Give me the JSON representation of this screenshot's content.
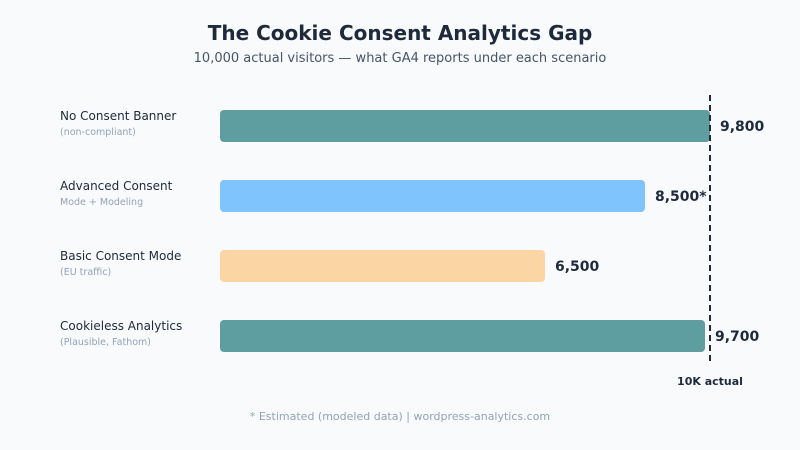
{
  "chart_data": {
    "type": "bar",
    "orientation": "horizontal",
    "title": "The Cookie Consent Analytics Gap",
    "subtitle": "10,000 actual visitors — what GA4 reports under each scenario",
    "categories": [
      "No Consent Banner",
      "Advanced Consent",
      "Basic Consent Mode",
      "Cookieless Analytics"
    ],
    "sublabels": [
      "(non-compliant)",
      "Mode + Modeling",
      "(EU traffic)",
      "(Plausible, Fathom)"
    ],
    "values": [
      9800,
      8500,
      6500,
      9700
    ],
    "value_labels": [
      "9,800",
      "8,500*",
      "6,500",
      "9,700"
    ],
    "colors": [
      "#5f9ea0",
      "#7fc4fd",
      "#fbd6a4",
      "#5f9ea0"
    ],
    "reference_line": {
      "value": 10000,
      "label": "10K actual",
      "style": "dashed"
    },
    "xlim": [
      0,
      10000
    ],
    "grid": false,
    "footnote": "* Estimated (modeled data) | wordpress-analytics.com"
  }
}
